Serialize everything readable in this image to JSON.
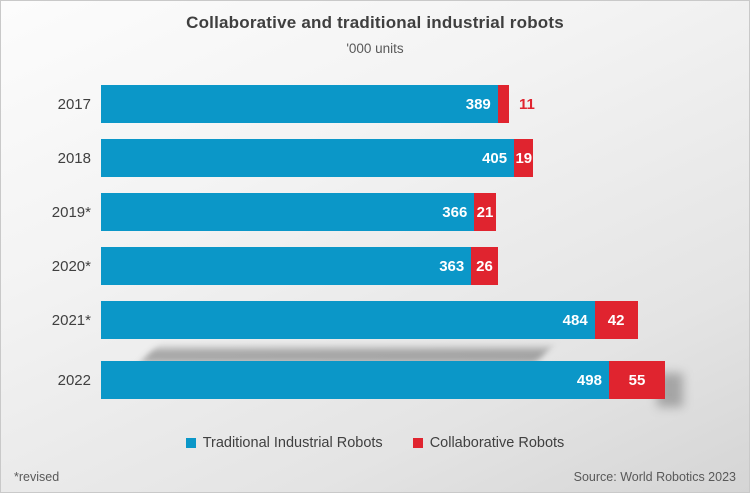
{
  "title": "Collaborative and traditional industrial robots",
  "subtitle": "'000 units",
  "footnote": "*revised",
  "source": "Source: World Robotics 2023",
  "colors": {
    "traditional_blue": "#0b97c8",
    "collaborative_red": "#e0242f",
    "title_text": "#3f3f3f",
    "axis_text": "#404040",
    "footer_text": "#595959"
  },
  "legend": [
    {
      "label": "Traditional Industrial Robots",
      "color": "#0b97c8"
    },
    {
      "label": "Collaborative Robots",
      "color": "#e0242f"
    }
  ],
  "chart_data": {
    "type": "bar",
    "orientation": "horizontal",
    "stacked": true,
    "title": "Collaborative and traditional industrial robots",
    "subtitle": "'000 units",
    "categories": [
      "2017",
      "2018",
      "2019*",
      "2020*",
      "2021*",
      "2022"
    ],
    "series": [
      {
        "name": "Traditional Industrial Robots",
        "color": "#0b97c8",
        "values": [
          389,
          405,
          366,
          363,
          484,
          498
        ]
      },
      {
        "name": "Collaborative Robots",
        "color": "#e0242f",
        "values": [
          11,
          19,
          21,
          26,
          42,
          55
        ]
      }
    ],
    "xlim": [
      0,
      600
    ],
    "grid": false,
    "value_labels": true,
    "legend_position": "bottom",
    "highlight_category": "2022"
  }
}
